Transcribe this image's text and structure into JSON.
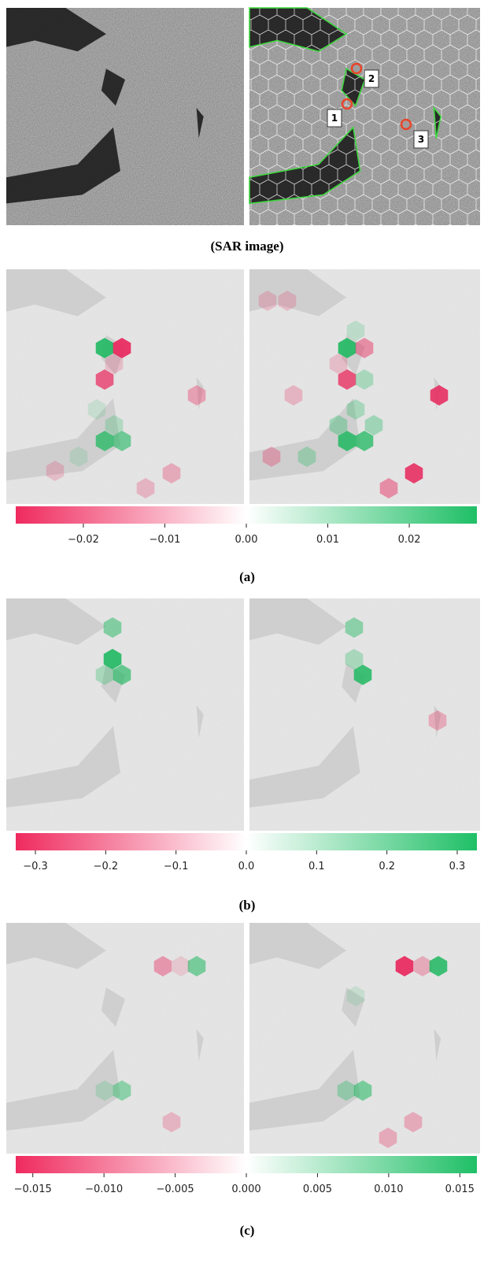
{
  "captions": [
    "(SAR image)",
    "(a)",
    "(b)",
    "(c)"
  ],
  "markers": [
    "1",
    "2",
    "3"
  ],
  "colorbars": [
    {
      "lim": [
        -0.0283,
        0.0283
      ],
      "ticks": [
        {
          "value": -0.02,
          "label": "−0.02"
        },
        {
          "value": -0.01,
          "label": "−0.01"
        },
        {
          "value": 0,
          "label": "0.00"
        },
        {
          "value": 0.01,
          "label": "0.01"
        },
        {
          "value": 0.02,
          "label": "0.02"
        }
      ]
    },
    {
      "lim": [
        -0.328,
        0.328
      ],
      "ticks": [
        {
          "value": -0.3,
          "label": "−0.3"
        },
        {
          "value": -0.2,
          "label": "−0.2"
        },
        {
          "value": -0.1,
          "label": "−0.1"
        },
        {
          "value": 0,
          "label": "0.0"
        },
        0.1,
        0.2,
        0.3
      ]
    },
    {
      "lim": [
        -0.0162,
        0.0162
      ],
      "ticks": [
        {
          "value": -0.015,
          "label": "−0.015"
        },
        {
          "value": -0.01,
          "label": "−0.010"
        },
        {
          "value": -0.005,
          "label": "−0.005"
        },
        {
          "value": 0,
          "label": "0.000"
        },
        0.005,
        {
          "value": 0.01,
          "label": "0.010"
        },
        0.015
      ]
    }
  ]
}
